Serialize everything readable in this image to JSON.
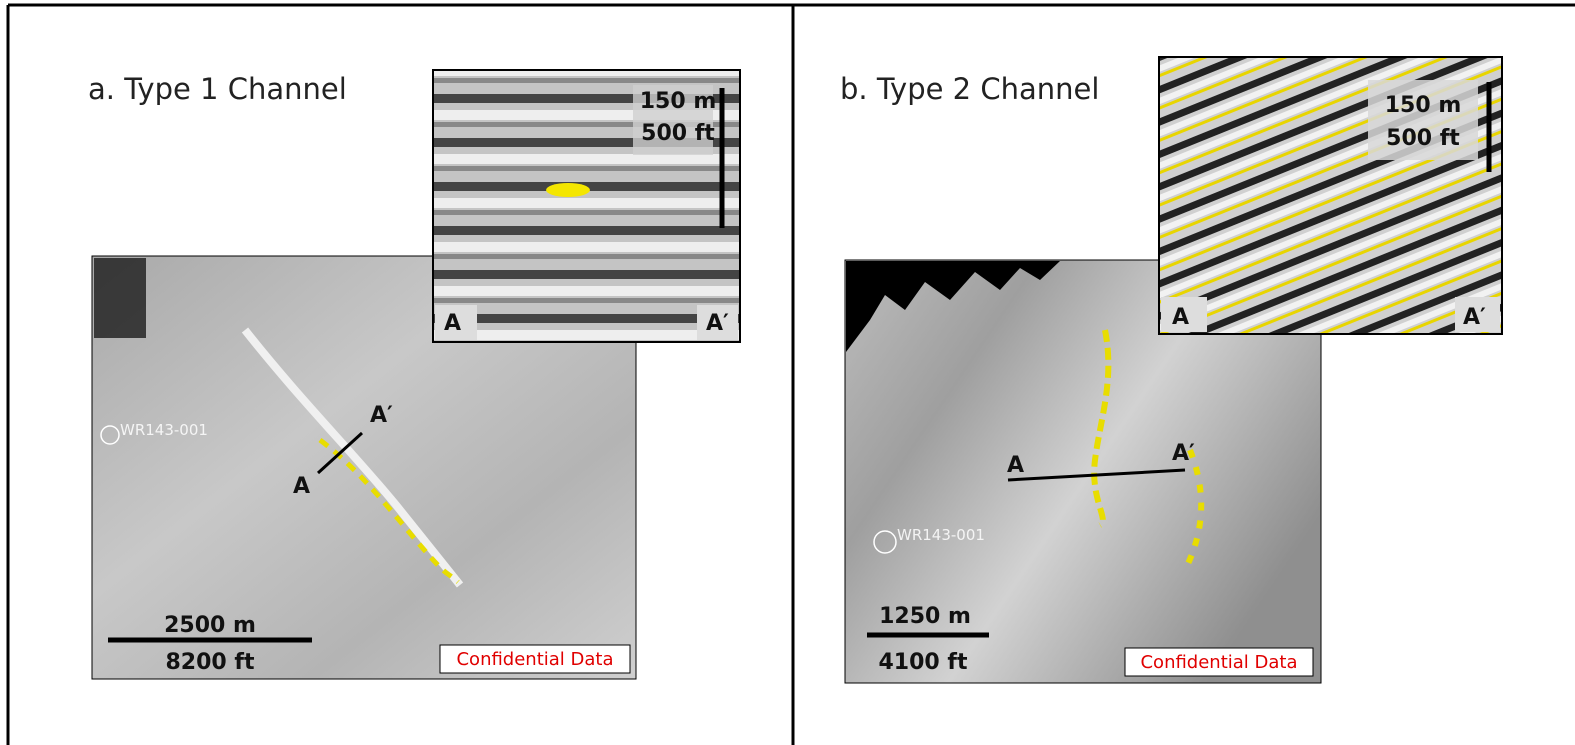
{
  "panels": [
    {
      "title": "a. Type 1 Channel",
      "section": {
        "scale_top": "150 m",
        "scale_bottom": "500 ft",
        "left_label": "A",
        "right_label": "A′"
      },
      "map": {
        "line_end": "A′",
        "line_start": "A",
        "well": "WR143-001",
        "scale_top": "2500 m",
        "scale_bottom": "8200 ft",
        "watermark": "Confidential Data"
      }
    },
    {
      "title": "b. Type 2 Channel",
      "section": {
        "scale_top": "150 m",
        "scale_bottom": "500 ft",
        "left_label": "A",
        "right_label": "A′"
      },
      "map": {
        "line_end": "A′",
        "line_start": "A",
        "well": "WR143-001",
        "scale_top": "1250 m",
        "scale_bottom": "4100 ft",
        "watermark": "Confidential Data"
      }
    }
  ]
}
